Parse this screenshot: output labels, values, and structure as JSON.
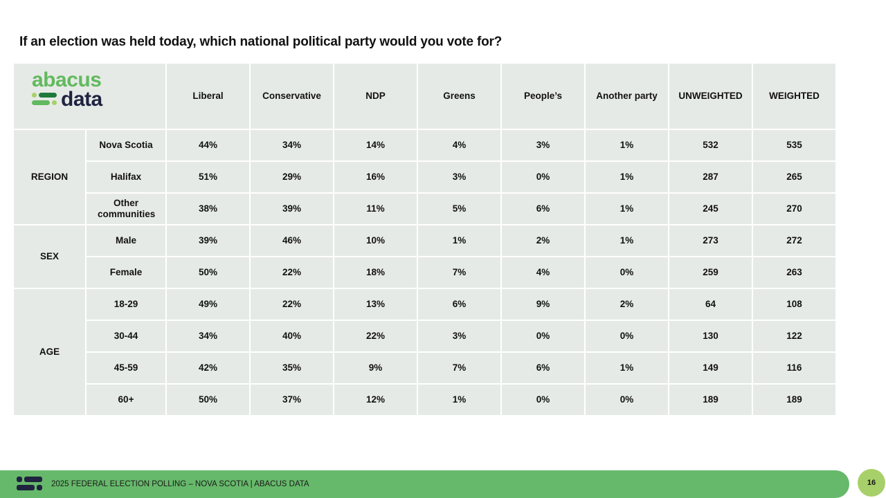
{
  "title": "If an election was held today, which national political party would you vote for?",
  "logo": {
    "line1": "abacus",
    "line2": "data"
  },
  "columns": [
    "Liberal",
    "Conservative",
    "NDP",
    "Greens",
    "People’s",
    "Another party",
    "UNWEIGHTED",
    "WEIGHTED"
  ],
  "groups": [
    {
      "label": "REGION",
      "rows": [
        {
          "label": "Nova Scotia",
          "values": [
            "44%",
            "34%",
            "14%",
            "4%",
            "3%",
            "1%",
            "532",
            "535"
          ]
        },
        {
          "label": "Halifax",
          "values": [
            "51%",
            "29%",
            "16%",
            "3%",
            "0%",
            "1%",
            "287",
            "265"
          ]
        },
        {
          "label": "Other communities",
          "values": [
            "38%",
            "39%",
            "11%",
            "5%",
            "6%",
            "1%",
            "245",
            "270"
          ]
        }
      ]
    },
    {
      "label": "SEX",
      "rows": [
        {
          "label": "Male",
          "values": [
            "39%",
            "46%",
            "10%",
            "1%",
            "2%",
            "1%",
            "273",
            "272"
          ]
        },
        {
          "label": "Female",
          "values": [
            "50%",
            "22%",
            "18%",
            "7%",
            "4%",
            "0%",
            "259",
            "263"
          ]
        }
      ]
    },
    {
      "label": "AGE",
      "rows": [
        {
          "label": "18-29",
          "values": [
            "49%",
            "22%",
            "13%",
            "6%",
            "9%",
            "2%",
            "64",
            "108"
          ]
        },
        {
          "label": "30-44",
          "values": [
            "34%",
            "40%",
            "22%",
            "3%",
            "0%",
            "0%",
            "130",
            "122"
          ]
        },
        {
          "label": "45-59",
          "values": [
            "42%",
            "35%",
            "9%",
            "7%",
            "6%",
            "1%",
            "149",
            "116"
          ]
        },
        {
          "label": "60+",
          "values": [
            "50%",
            "37%",
            "12%",
            "1%",
            "0%",
            "0%",
            "189",
            "189"
          ]
        }
      ]
    }
  ],
  "footer": {
    "text": "2025 FEDERAL ELECTION POLLING – NOVA SCOTIA  |  ABACUS DATA",
    "page": "16"
  },
  "colors": {
    "green": "#66b96a",
    "navy": "#1f2340",
    "cell": "#e6eae6",
    "page_badge": "#a8d06a"
  }
}
